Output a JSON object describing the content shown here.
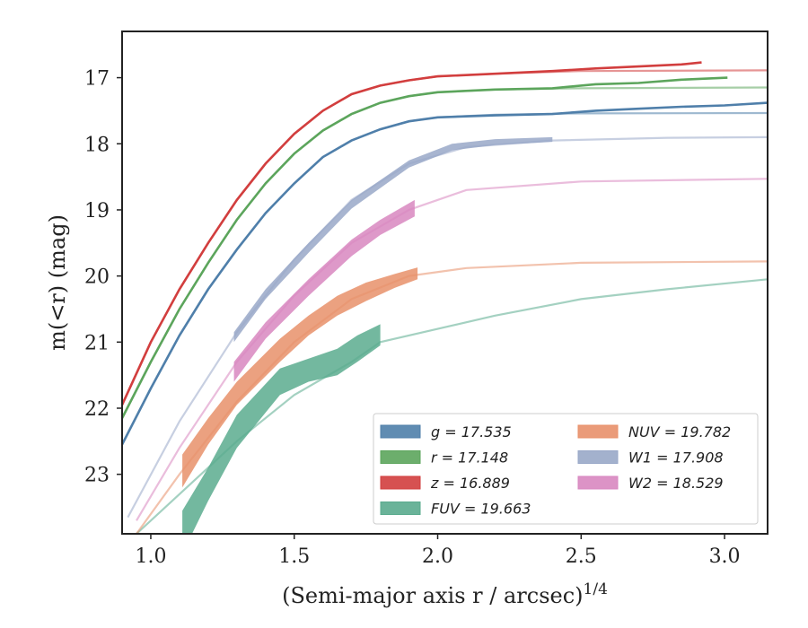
{
  "chart_data": {
    "type": "line",
    "xlabel": "(Semi-major axis r / arcsec)",
    "xlabel_sup": "1/4",
    "ylabel": "m(<r) (mag)",
    "xlim": [
      0.9,
      3.15
    ],
    "ylim": [
      23.9,
      16.3
    ],
    "y_inverted": true,
    "grid": false,
    "legend_position": "lower-right",
    "x_ticks": [
      {
        "value": 1.0,
        "label": "1.0"
      },
      {
        "value": 1.5,
        "label": "1.5"
      },
      {
        "value": 2.0,
        "label": "2.0"
      },
      {
        "value": 2.5,
        "label": "2.5"
      },
      {
        "value": 3.0,
        "label": "3.0"
      }
    ],
    "y_ticks": [
      {
        "value": 17,
        "label": "17"
      },
      {
        "value": 18,
        "label": "18"
      },
      {
        "value": 19,
        "label": "19"
      },
      {
        "value": 20,
        "label": "20"
      },
      {
        "value": 21,
        "label": "21"
      },
      {
        "value": 22,
        "label": "22"
      },
      {
        "value": 23,
        "label": "23"
      }
    ],
    "series": [
      {
        "band": "FUV",
        "name": "FUV = 19.663",
        "color": "#5aab8e",
        "model": [
          [
            0.95,
            23.9
          ],
          [
            1.1,
            23.3
          ],
          [
            1.3,
            22.5
          ],
          [
            1.5,
            21.8
          ],
          [
            1.7,
            21.3
          ],
          [
            1.8,
            21.0
          ],
          [
            2.0,
            20.8
          ],
          [
            2.2,
            20.6
          ],
          [
            2.5,
            20.35
          ],
          [
            2.8,
            20.2
          ],
          [
            3.15,
            20.05
          ]
        ],
        "obs": [
          [
            1.11,
            23.55,
            24.2
          ],
          [
            1.2,
            22.9,
            23.4
          ],
          [
            1.3,
            22.1,
            22.6
          ],
          [
            1.45,
            21.4,
            21.8
          ],
          [
            1.55,
            21.25,
            21.6
          ],
          [
            1.65,
            21.1,
            21.5
          ],
          [
            1.72,
            20.9,
            21.3
          ],
          [
            1.8,
            20.73,
            21.05
          ]
        ]
      },
      {
        "band": "NUV",
        "name": "NUV = 19.782",
        "color": "#e8906a",
        "model": [
          [
            0.95,
            23.9
          ],
          [
            1.1,
            23.0
          ],
          [
            1.3,
            21.9
          ],
          [
            1.5,
            21.0
          ],
          [
            1.7,
            20.35
          ],
          [
            1.9,
            20.0
          ],
          [
            2.1,
            19.88
          ],
          [
            2.5,
            19.8
          ],
          [
            3.15,
            19.78
          ]
        ],
        "obs": [
          [
            1.11,
            22.7,
            23.2
          ],
          [
            1.2,
            22.15,
            22.55
          ],
          [
            1.3,
            21.6,
            21.95
          ],
          [
            1.45,
            20.95,
            21.3
          ],
          [
            1.55,
            20.6,
            20.9
          ],
          [
            1.65,
            20.3,
            20.6
          ],
          [
            1.75,
            20.1,
            20.38
          ],
          [
            1.85,
            19.97,
            20.18
          ],
          [
            1.93,
            19.87,
            20.05
          ]
        ]
      },
      {
        "band": "W2",
        "name": "W2 = 18.529",
        "color": "#d887c0",
        "model": [
          [
            0.95,
            23.7
          ],
          [
            1.1,
            22.6
          ],
          [
            1.3,
            21.3
          ],
          [
            1.5,
            20.3
          ],
          [
            1.7,
            19.5
          ],
          [
            1.9,
            19.0
          ],
          [
            2.1,
            18.7
          ],
          [
            2.5,
            18.57
          ],
          [
            3.15,
            18.53
          ]
        ],
        "obs": [
          [
            1.29,
            21.3,
            21.6
          ],
          [
            1.4,
            20.7,
            20.95
          ],
          [
            1.55,
            20.05,
            20.3
          ],
          [
            1.7,
            19.45,
            19.7
          ],
          [
            1.8,
            19.15,
            19.38
          ],
          [
            1.92,
            18.85,
            19.1
          ]
        ]
      },
      {
        "band": "W1",
        "name": "W1 = 17.908",
        "color": "#99a8c8",
        "model": [
          [
            0.92,
            23.65
          ],
          [
            1.1,
            22.2
          ],
          [
            1.3,
            20.85
          ],
          [
            1.5,
            19.75
          ],
          [
            1.7,
            18.85
          ],
          [
            1.9,
            18.3
          ],
          [
            2.1,
            18.05
          ],
          [
            2.4,
            17.95
          ],
          [
            2.8,
            17.91
          ],
          [
            3.15,
            17.9
          ]
        ],
        "obs": [
          [
            1.29,
            20.85,
            21.0
          ],
          [
            1.4,
            20.2,
            20.35
          ],
          [
            1.55,
            19.5,
            19.65
          ],
          [
            1.7,
            18.85,
            18.98
          ],
          [
            1.9,
            18.25,
            18.36
          ],
          [
            2.05,
            18.0,
            18.1
          ],
          [
            2.2,
            17.93,
            18.02
          ],
          [
            2.4,
            17.9,
            17.97
          ]
        ]
      },
      {
        "band": "g",
        "name": "g = 17.535",
        "color": "#4f7faa",
        "model": [
          [
            0.9,
            22.55
          ],
          [
            1.0,
            21.7
          ],
          [
            1.1,
            20.9
          ],
          [
            1.2,
            20.2
          ],
          [
            1.3,
            19.6
          ],
          [
            1.4,
            19.05
          ],
          [
            1.5,
            18.6
          ],
          [
            1.6,
            18.2
          ],
          [
            1.7,
            17.95
          ],
          [
            1.8,
            17.78
          ],
          [
            1.9,
            17.66
          ],
          [
            2.0,
            17.6
          ],
          [
            2.2,
            17.56
          ],
          [
            2.5,
            17.54
          ],
          [
            3.15,
            17.535
          ]
        ],
        "obs_line": [
          [
            0.9,
            22.55
          ],
          [
            1.0,
            21.7
          ],
          [
            1.1,
            20.9
          ],
          [
            1.2,
            20.2
          ],
          [
            1.3,
            19.6
          ],
          [
            1.4,
            19.05
          ],
          [
            1.5,
            18.6
          ],
          [
            1.6,
            18.2
          ],
          [
            1.7,
            17.95
          ],
          [
            1.8,
            17.78
          ],
          [
            1.9,
            17.66
          ],
          [
            2.0,
            17.6
          ],
          [
            2.2,
            17.57
          ],
          [
            2.4,
            17.55
          ],
          [
            2.55,
            17.5
          ],
          [
            2.7,
            17.47
          ],
          [
            2.85,
            17.44
          ],
          [
            3.0,
            17.42
          ],
          [
            3.15,
            17.38
          ]
        ]
      },
      {
        "band": "r",
        "name": "r = 17.148",
        "color": "#5ca55c",
        "model": [
          [
            0.9,
            22.15
          ],
          [
            1.0,
            21.3
          ],
          [
            1.1,
            20.5
          ],
          [
            1.2,
            19.8
          ],
          [
            1.3,
            19.15
          ],
          [
            1.4,
            18.6
          ],
          [
            1.5,
            18.15
          ],
          [
            1.6,
            17.8
          ],
          [
            1.7,
            17.55
          ],
          [
            1.8,
            17.38
          ],
          [
            1.9,
            17.28
          ],
          [
            2.0,
            17.22
          ],
          [
            2.2,
            17.18
          ],
          [
            2.5,
            17.16
          ],
          [
            3.15,
            17.148
          ]
        ],
        "obs_line": [
          [
            0.9,
            22.15
          ],
          [
            1.0,
            21.3
          ],
          [
            1.1,
            20.5
          ],
          [
            1.2,
            19.8
          ],
          [
            1.3,
            19.15
          ],
          [
            1.4,
            18.6
          ],
          [
            1.5,
            18.15
          ],
          [
            1.6,
            17.8
          ],
          [
            1.7,
            17.55
          ],
          [
            1.8,
            17.38
          ],
          [
            1.9,
            17.28
          ],
          [
            2.0,
            17.22
          ],
          [
            2.2,
            17.18
          ],
          [
            2.4,
            17.16
          ],
          [
            2.55,
            17.1
          ],
          [
            2.7,
            17.08
          ],
          [
            2.85,
            17.03
          ],
          [
            3.01,
            17.0
          ]
        ]
      },
      {
        "band": "z",
        "name": "z = 16.889",
        "color": "#d23e3e",
        "model": [
          [
            0.9,
            21.95
          ],
          [
            1.0,
            21.0
          ],
          [
            1.1,
            20.2
          ],
          [
            1.2,
            19.5
          ],
          [
            1.3,
            18.85
          ],
          [
            1.4,
            18.3
          ],
          [
            1.5,
            17.85
          ],
          [
            1.6,
            17.5
          ],
          [
            1.7,
            17.25
          ],
          [
            1.8,
            17.12
          ],
          [
            1.9,
            17.04
          ],
          [
            2.0,
            16.98
          ],
          [
            2.2,
            16.94
          ],
          [
            2.5,
            16.9
          ],
          [
            3.15,
            16.889
          ]
        ],
        "obs_line": [
          [
            0.9,
            21.95
          ],
          [
            1.0,
            21.0
          ],
          [
            1.1,
            20.2
          ],
          [
            1.2,
            19.5
          ],
          [
            1.3,
            18.85
          ],
          [
            1.4,
            18.3
          ],
          [
            1.5,
            17.85
          ],
          [
            1.6,
            17.5
          ],
          [
            1.7,
            17.25
          ],
          [
            1.8,
            17.12
          ],
          [
            1.9,
            17.04
          ],
          [
            2.0,
            16.98
          ],
          [
            2.2,
            16.94
          ],
          [
            2.4,
            16.9
          ],
          [
            2.55,
            16.86
          ],
          [
            2.7,
            16.83
          ],
          [
            2.85,
            16.8
          ],
          [
            2.92,
            16.77
          ]
        ]
      }
    ],
    "legend": {
      "columns": [
        [
          {
            "band": "g",
            "label": "g = 17.535",
            "color": "#4f7faa"
          },
          {
            "band": "r",
            "label": "r = 17.148",
            "color": "#5ca55c"
          },
          {
            "band": "z",
            "label": "z = 16.889",
            "color": "#d23e3e"
          },
          {
            "band": "FUV",
            "label": "FUV = 19.663",
            "color": "#5aab8e"
          }
        ],
        [
          {
            "band": "NUV",
            "label": "NUV = 19.782",
            "color": "#e8906a"
          },
          {
            "band": "W1",
            "label": "W1 = 17.908",
            "color": "#99a8c8"
          },
          {
            "band": "W2",
            "label": "W2 = 18.529",
            "color": "#d887c0"
          }
        ]
      ]
    }
  }
}
